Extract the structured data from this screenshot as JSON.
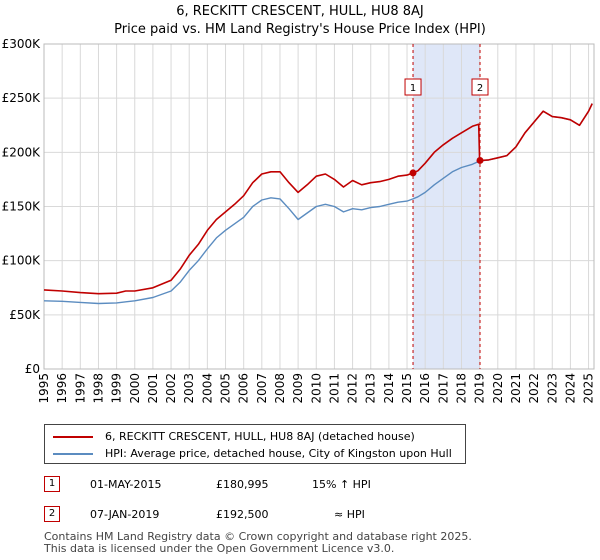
{
  "title": "6, RECKITT CRESCENT, HULL, HU8 8AJ",
  "subtitle": "Price paid vs. HM Land Registry's House Price Index (HPI)",
  "colors": {
    "property": "#c00000",
    "hpi": "#5b8cc0",
    "band": "#dfe7f8",
    "grid": "#d9d9d9"
  },
  "chart_data": {
    "type": "line",
    "x_range": [
      1995,
      2025.3
    ],
    "ylim": [
      0,
      300000
    ],
    "y_ticks": [
      {
        "value": 0,
        "label": "£0"
      },
      {
        "value": 50000,
        "label": "£50K"
      },
      {
        "value": 100000,
        "label": "£100K"
      },
      {
        "value": 150000,
        "label": "£150K"
      },
      {
        "value": 200000,
        "label": "£200K"
      },
      {
        "value": 250000,
        "label": "£250K"
      },
      {
        "value": 300000,
        "label": "£300K"
      }
    ],
    "x_ticks": [
      "1995",
      "1996",
      "1997",
      "1998",
      "1999",
      "2000",
      "2001",
      "2002",
      "2003",
      "2004",
      "2005",
      "2006",
      "2007",
      "2008",
      "2009",
      "2010",
      "2011",
      "2012",
      "2013",
      "2014",
      "2015",
      "2016",
      "2017",
      "2018",
      "2019",
      "2020",
      "2021",
      "2022",
      "2023",
      "2024",
      "2025"
    ],
    "series": [
      {
        "name": "6, RECKITT CRESCENT, HULL, HU8 8AJ (detached house)",
        "key": "property",
        "points": [
          [
            1995.0,
            73000
          ],
          [
            1996.0,
            72000
          ],
          [
            1997.0,
            70500
          ],
          [
            1998.0,
            69500
          ],
          [
            1999.0,
            70000
          ],
          [
            1999.5,
            72000
          ],
          [
            2000.0,
            72000
          ],
          [
            2001.0,
            75000
          ],
          [
            2002.0,
            82000
          ],
          [
            2002.5,
            92000
          ],
          [
            2003.0,
            105000
          ],
          [
            2003.5,
            115000
          ],
          [
            2004.0,
            128000
          ],
          [
            2004.5,
            138000
          ],
          [
            2005.0,
            145000
          ],
          [
            2005.5,
            152000
          ],
          [
            2006.0,
            160000
          ],
          [
            2006.5,
            172000
          ],
          [
            2007.0,
            180000
          ],
          [
            2007.5,
            182000
          ],
          [
            2008.0,
            182000
          ],
          [
            2008.5,
            172000
          ],
          [
            2009.0,
            163000
          ],
          [
            2009.5,
            170000
          ],
          [
            2010.0,
            178000
          ],
          [
            2010.5,
            180000
          ],
          [
            2011.0,
            175000
          ],
          [
            2011.5,
            168000
          ],
          [
            2012.0,
            174000
          ],
          [
            2012.5,
            170000
          ],
          [
            2013.0,
            172000
          ],
          [
            2013.5,
            173000
          ],
          [
            2014.0,
            175000
          ],
          [
            2014.5,
            178000
          ],
          [
            2015.0,
            179000
          ],
          [
            2015.33,
            180995
          ],
          [
            2015.6,
            183000
          ],
          [
            2016.0,
            190000
          ],
          [
            2016.5,
            200000
          ],
          [
            2017.0,
            207000
          ],
          [
            2017.5,
            213000
          ],
          [
            2018.0,
            218000
          ],
          [
            2018.6,
            224000
          ],
          [
            2018.95,
            226000
          ],
          [
            2019.0,
            192500
          ],
          [
            2019.5,
            193000
          ],
          [
            2020.0,
            195000
          ],
          [
            2020.5,
            197000
          ],
          [
            2021.0,
            205000
          ],
          [
            2021.5,
            218000
          ],
          [
            2022.0,
            228000
          ],
          [
            2022.5,
            238000
          ],
          [
            2023.0,
            233000
          ],
          [
            2023.5,
            232000
          ],
          [
            2024.0,
            230000
          ],
          [
            2024.5,
            225000
          ],
          [
            2025.0,
            238000
          ],
          [
            2025.2,
            245000
          ]
        ]
      },
      {
        "name": "HPI: Average price, detached house, City of Kingston upon Hull",
        "key": "hpi",
        "points": [
          [
            1995.0,
            63000
          ],
          [
            1996.0,
            62500
          ],
          [
            1997.0,
            61500
          ],
          [
            1998.0,
            60500
          ],
          [
            1999.0,
            61000
          ],
          [
            2000.0,
            63000
          ],
          [
            2001.0,
            66000
          ],
          [
            2002.0,
            72000
          ],
          [
            2002.5,
            80000
          ],
          [
            2003.0,
            91000
          ],
          [
            2003.5,
            100000
          ],
          [
            2004.0,
            111000
          ],
          [
            2004.5,
            121000
          ],
          [
            2005.0,
            128000
          ],
          [
            2005.5,
            134000
          ],
          [
            2006.0,
            140000
          ],
          [
            2006.5,
            150000
          ],
          [
            2007.0,
            156000
          ],
          [
            2007.5,
            158000
          ],
          [
            2008.0,
            157000
          ],
          [
            2008.5,
            148000
          ],
          [
            2009.0,
            138000
          ],
          [
            2009.5,
            144000
          ],
          [
            2010.0,
            150000
          ],
          [
            2010.5,
            152000
          ],
          [
            2011.0,
            150000
          ],
          [
            2011.5,
            145000
          ],
          [
            2012.0,
            148000
          ],
          [
            2012.5,
            147000
          ],
          [
            2013.0,
            149000
          ],
          [
            2013.5,
            150000
          ],
          [
            2014.0,
            152000
          ],
          [
            2014.5,
            154000
          ],
          [
            2015.0,
            155000
          ],
          [
            2015.33,
            157000
          ],
          [
            2015.6,
            159000
          ],
          [
            2016.0,
            163000
          ],
          [
            2016.5,
            170000
          ],
          [
            2017.0,
            176000
          ],
          [
            2017.5,
            182000
          ],
          [
            2018.0,
            186000
          ],
          [
            2018.6,
            189000
          ],
          [
            2019.0,
            192000
          ],
          [
            2019.5,
            193000
          ],
          [
            2020.0,
            195000
          ],
          [
            2020.5,
            197000
          ],
          [
            2021.0,
            205000
          ],
          [
            2021.5,
            218000
          ],
          [
            2022.0,
            228000
          ],
          [
            2022.5,
            238000
          ],
          [
            2023.0,
            233000
          ],
          [
            2023.5,
            232000
          ],
          [
            2024.0,
            230000
          ],
          [
            2024.5,
            225000
          ],
          [
            2025.0,
            238000
          ],
          [
            2025.2,
            245000
          ]
        ]
      }
    ],
    "sales": [
      {
        "label": "1",
        "x": 2015.33,
        "value": 180995
      },
      {
        "label": "2",
        "x": 2019.02,
        "value": 192500
      }
    ],
    "shaded_range": [
      2015.33,
      2019.02
    ]
  },
  "legend": {
    "property_label": "6, RECKITT CRESCENT, HULL, HU8 8AJ (detached house)",
    "hpi_label": "HPI: Average price, detached house, City of Kingston upon Hull"
  },
  "transactions": [
    {
      "num": "1",
      "date": "01-MAY-2015",
      "price": "£180,995",
      "hpi": "15% ↑ HPI"
    },
    {
      "num": "2",
      "date": "07-JAN-2019",
      "price": "£192,500",
      "hpi": "≈ HPI"
    }
  ],
  "footer": {
    "line1": "Contains HM Land Registry data © Crown copyright and database right 2025.",
    "line2": "This data is licensed under the Open Government Licence v3.0."
  }
}
